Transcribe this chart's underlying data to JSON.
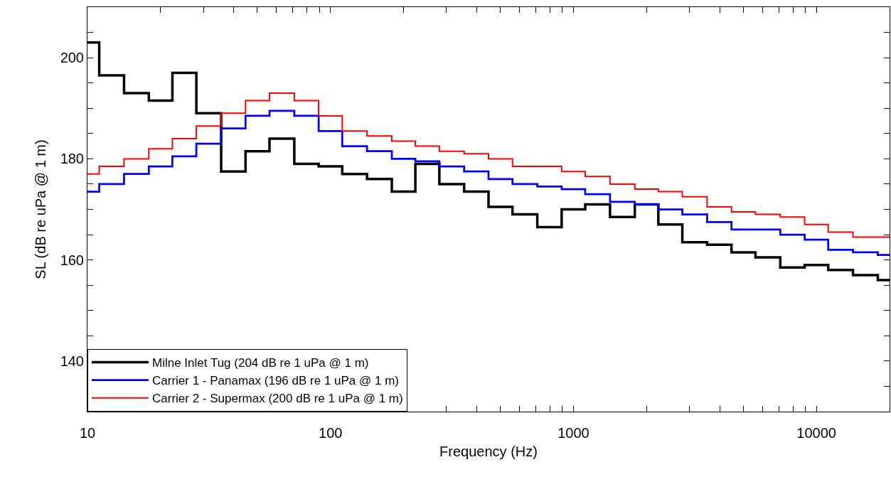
{
  "chart_data": {
    "type": "step",
    "xlabel": "Frequency (Hz)",
    "ylabel": "SL (dB re uPa @ 1 m)",
    "x": [
      10,
      12.5,
      16,
      20,
      25,
      31.5,
      40,
      50,
      63,
      80,
      100,
      125,
      160,
      200,
      250,
      315,
      400,
      500,
      630,
      800,
      1000,
      1250,
      1600,
      2000,
      2500,
      3150,
      4000,
      5000,
      6300,
      8000,
      10000,
      12500,
      16000,
      20000
    ],
    "series": [
      {
        "name": "Milne Inlet Tug (204 dB re 1 uPa @ 1 m)",
        "color": "#000000",
        "values": [
          203,
          196.5,
          193,
          191.5,
          197,
          189,
          177.5,
          181.5,
          184,
          179,
          178.5,
          177,
          176,
          173.5,
          179,
          175,
          173.5,
          170.5,
          169,
          166.5,
          170,
          171,
          168.5,
          171,
          167,
          163.5,
          163,
          161.5,
          160.5,
          158.5,
          159,
          158,
          157,
          156
        ]
      },
      {
        "name": "Carrier 1 - Panamax (196 dB re 1 uPa @ 1 m)",
        "color": "#0000ff",
        "values": [
          173.5,
          175,
          177,
          178.5,
          180.5,
          183,
          186,
          188.5,
          189.5,
          188.5,
          185.5,
          182.5,
          181.5,
          180,
          179.5,
          178.5,
          177.5,
          176,
          175,
          174.5,
          174,
          173,
          171.5,
          171,
          170,
          169,
          167.5,
          166,
          166,
          165,
          164,
          162,
          161.5,
          161
        ]
      },
      {
        "name": "Carrier 2 - Supermax (200 dB re 1 uPa @ 1 m)",
        "color": "#ff0000",
        "values": [
          177,
          178.5,
          180,
          182,
          184,
          186.5,
          189,
          191.5,
          193,
          191.5,
          188.5,
          185.5,
          184.5,
          183.5,
          182.5,
          181.5,
          181,
          180,
          178.5,
          178.5,
          177.5,
          176.5,
          175,
          174,
          173.5,
          172.5,
          170.5,
          169.5,
          169,
          168.5,
          167,
          165.5,
          164.5,
          164.5
        ]
      }
    ],
    "log": "x",
    "xlim": [
      10,
      20000
    ],
    "xticks": [
      10,
      {
        "value": 20,
        "label": null
      },
      {
        "value": 30,
        "label": null
      },
      {
        "value": 40,
        "label": null
      },
      {
        "value": 50,
        "label": null
      },
      {
        "value": 60,
        "label": null
      },
      {
        "value": 70,
        "label": null
      },
      {
        "value": 80,
        "label": null
      },
      {
        "value": 90,
        "label": null
      },
      100,
      {
        "value": 200,
        "label": null
      },
      {
        "value": 300,
        "label": null
      },
      {
        "value": 400,
        "label": null
      },
      {
        "value": 500,
        "label": null
      },
      {
        "value": 600,
        "label": null
      },
      {
        "value": 700,
        "label": null
      },
      {
        "value": 800,
        "label": null
      },
      {
        "value": 900,
        "label": null
      },
      1000,
      {
        "value": 2000,
        "label": null
      },
      {
        "value": 3000,
        "label": null
      },
      {
        "value": 4000,
        "label": null
      },
      {
        "value": 5000,
        "label": null
      },
      {
        "value": 6000,
        "label": null
      },
      {
        "value": 7000,
        "label": null
      },
      {
        "value": 8000,
        "label": null
      },
      {
        "value": 9000,
        "label": null
      },
      10000
    ],
    "ylim": [
      130,
      210
    ],
    "yticks": [
      {
        "value": 135,
        "label": null
      },
      140,
      {
        "value": 145,
        "label": null
      },
      {
        "value": 150,
        "label": null
      },
      {
        "value": 155,
        "label": null
      },
      160,
      {
        "value": 165,
        "label": null
      },
      {
        "value": 170,
        "label": null
      },
      {
        "value": 175,
        "label": null
      },
      180,
      {
        "value": 185,
        "label": null
      },
      {
        "value": 190,
        "label": null
      },
      {
        "value": 195,
        "label": null
      },
      200,
      {
        "value": 205,
        "label": null
      }
    ],
    "legend": "bottom left",
    "marker": "none",
    "line_style": "solid"
  }
}
